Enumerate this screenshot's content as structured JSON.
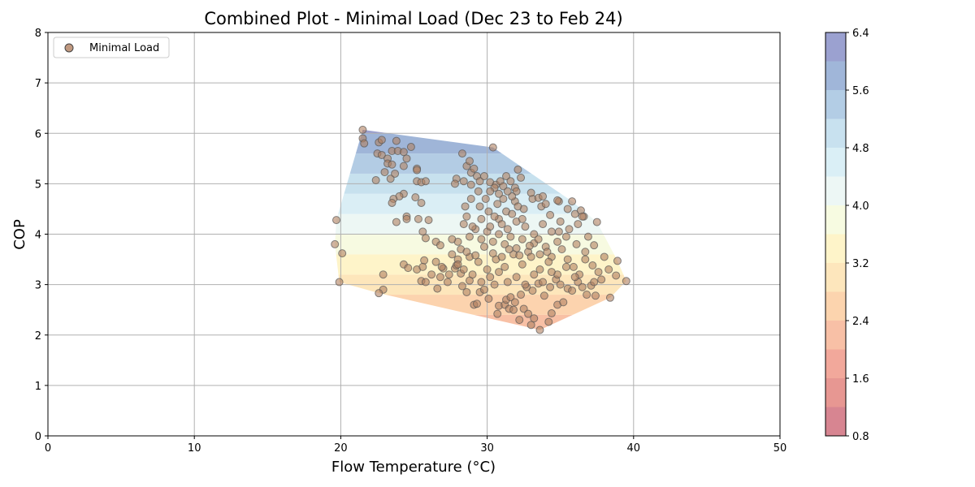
{
  "chart_data": {
    "type": "scatter",
    "title": "Combined Plot - Minimal Load (Dec 23 to Feb 24)",
    "xlabel": "Flow Temperature (°C)",
    "ylabel": "COP",
    "xlim": [
      0,
      50
    ],
    "ylim": [
      0,
      8
    ],
    "xticks": [
      "0",
      "10",
      "20",
      "30",
      "40",
      "50"
    ],
    "yticks": [
      "0",
      "1",
      "2",
      "3",
      "4",
      "5",
      "6",
      "7",
      "8"
    ],
    "grid": true,
    "legend_position": "top-left",
    "series": [
      {
        "name": "Minimal Load",
        "color": "#b08060",
        "points": [
          [
            21.5,
            6.07
          ],
          [
            21.5,
            5.9
          ],
          [
            21.6,
            5.8
          ],
          [
            22.5,
            5.6
          ],
          [
            22.6,
            5.82
          ],
          [
            22.8,
            5.87
          ],
          [
            22.8,
            5.57
          ],
          [
            23.2,
            5.5
          ],
          [
            23.2,
            5.4
          ],
          [
            23.5,
            5.38
          ],
          [
            23.5,
            5.65
          ],
          [
            23.8,
            5.85
          ],
          [
            23.9,
            5.65
          ],
          [
            24.3,
            5.63
          ],
          [
            24.5,
            5.5
          ],
          [
            24.8,
            5.73
          ],
          [
            25.2,
            5.3
          ],
          [
            25.2,
            5.27
          ],
          [
            23.0,
            5.23
          ],
          [
            22.4,
            5.07
          ],
          [
            23.4,
            5.1
          ],
          [
            23.7,
            5.2
          ],
          [
            24.3,
            5.35
          ],
          [
            25.2,
            5.05
          ],
          [
            25.5,
            5.03
          ],
          [
            25.8,
            5.05
          ],
          [
            24.3,
            4.8
          ],
          [
            24.0,
            4.75
          ],
          [
            23.6,
            4.7
          ],
          [
            23.5,
            4.62
          ],
          [
            25.1,
            4.73
          ],
          [
            25.5,
            4.62
          ],
          [
            23.8,
            4.24
          ],
          [
            24.5,
            4.35
          ],
          [
            24.5,
            4.3
          ],
          [
            25.3,
            4.3
          ],
          [
            26.0,
            4.28
          ],
          [
            25.6,
            4.05
          ],
          [
            25.8,
            3.92
          ],
          [
            26.5,
            3.85
          ],
          [
            26.8,
            3.78
          ],
          [
            19.7,
            4.28
          ],
          [
            19.6,
            3.8
          ],
          [
            20.1,
            3.62
          ],
          [
            19.9,
            3.05
          ],
          [
            22.9,
            3.2
          ],
          [
            22.9,
            2.9
          ],
          [
            22.6,
            2.83
          ],
          [
            24.3,
            3.4
          ],
          [
            24.6,
            3.33
          ],
          [
            25.2,
            3.3
          ],
          [
            25.7,
            3.48
          ],
          [
            25.6,
            3.35
          ],
          [
            25.5,
            3.07
          ],
          [
            25.8,
            3.05
          ],
          [
            26.2,
            3.2
          ],
          [
            26.5,
            3.45
          ],
          [
            26.6,
            2.92
          ],
          [
            27.0,
            3.32
          ],
          [
            26.8,
            3.15
          ],
          [
            27.3,
            3.05
          ],
          [
            27.8,
            3.32
          ],
          [
            27.9,
            3.38
          ],
          [
            28.0,
            3.5
          ],
          [
            28.2,
            3.22
          ],
          [
            28.3,
            2.97
          ],
          [
            28.6,
            2.85
          ],
          [
            28.8,
            3.08
          ],
          [
            29.1,
            2.6
          ],
          [
            29.3,
            2.62
          ],
          [
            29.5,
            2.85
          ],
          [
            29.8,
            2.9
          ],
          [
            30.1,
            2.72
          ],
          [
            30.5,
            3.0
          ],
          [
            30.7,
            2.42
          ],
          [
            30.8,
            2.58
          ],
          [
            31.2,
            2.6
          ],
          [
            31.5,
            2.52
          ],
          [
            31.8,
            2.5
          ],
          [
            32.2,
            2.3
          ],
          [
            32.5,
            2.52
          ],
          [
            32.8,
            2.42
          ],
          [
            33.0,
            2.2
          ],
          [
            33.2,
            2.33
          ],
          [
            33.6,
            2.1
          ],
          [
            34.2,
            2.26
          ],
          [
            34.4,
            2.43
          ],
          [
            34.8,
            2.6
          ],
          [
            35.2,
            2.65
          ],
          [
            31.3,
            2.7
          ],
          [
            31.6,
            2.75
          ],
          [
            31.9,
            2.65
          ],
          [
            32.3,
            2.8
          ],
          [
            32.7,
            2.95
          ],
          [
            33.1,
            2.88
          ],
          [
            33.5,
            3.02
          ],
          [
            33.9,
            2.78
          ],
          [
            34.3,
            2.95
          ],
          [
            34.7,
            3.1
          ],
          [
            35.0,
            3.0
          ],
          [
            35.5,
            2.92
          ],
          [
            35.8,
            2.88
          ],
          [
            36.2,
            3.05
          ],
          [
            36.5,
            2.95
          ],
          [
            36.8,
            2.8
          ],
          [
            37.1,
            2.98
          ],
          [
            37.4,
            2.78
          ],
          [
            37.3,
            3.05
          ],
          [
            37.6,
            3.25
          ],
          [
            38.0,
            3.55
          ],
          [
            38.3,
            3.3
          ],
          [
            38.8,
            3.18
          ],
          [
            38.9,
            3.47
          ],
          [
            39.5,
            3.07
          ],
          [
            38.4,
            2.74
          ],
          [
            37.8,
            3.1
          ],
          [
            37.2,
            3.38
          ],
          [
            36.7,
            3.5
          ],
          [
            36.3,
            3.2
          ],
          [
            35.9,
            3.35
          ],
          [
            35.5,
            3.5
          ],
          [
            35.1,
            3.7
          ],
          [
            34.8,
            3.85
          ],
          [
            34.4,
            3.55
          ],
          [
            34.0,
            3.75
          ],
          [
            33.6,
            3.6
          ],
          [
            33.2,
            3.82
          ],
          [
            32.8,
            3.65
          ],
          [
            32.4,
            3.9
          ],
          [
            32.0,
            3.72
          ],
          [
            31.6,
            3.95
          ],
          [
            31.2,
            3.8
          ],
          [
            30.8,
            4.0
          ],
          [
            30.4,
            3.85
          ],
          [
            30.0,
            4.05
          ],
          [
            29.6,
            3.9
          ],
          [
            29.2,
            4.1
          ],
          [
            28.8,
            3.95
          ],
          [
            28.4,
            4.2
          ],
          [
            28.0,
            3.85
          ],
          [
            27.6,
            3.6
          ],
          [
            28.2,
            3.7
          ],
          [
            28.8,
            3.55
          ],
          [
            29.4,
            3.45
          ],
          [
            30.0,
            3.3
          ],
          [
            30.6,
            3.5
          ],
          [
            31.2,
            3.35
          ],
          [
            31.8,
            3.6
          ],
          [
            32.4,
            3.4
          ],
          [
            33.0,
            3.55
          ],
          [
            33.6,
            3.3
          ],
          [
            34.2,
            3.45
          ],
          [
            34.8,
            3.2
          ],
          [
            35.4,
            3.35
          ],
          [
            36.0,
            3.15
          ],
          [
            29.0,
            3.2
          ],
          [
            29.6,
            3.05
          ],
          [
            30.2,
            3.15
          ],
          [
            30.8,
            3.25
          ],
          [
            31.4,
            3.05
          ],
          [
            32.0,
            3.15
          ],
          [
            32.6,
            3.0
          ],
          [
            33.2,
            3.2
          ],
          [
            33.8,
            3.05
          ],
          [
            34.4,
            3.25
          ],
          [
            28.5,
            4.55
          ],
          [
            28.9,
            4.7
          ],
          [
            29.5,
            4.55
          ],
          [
            30.1,
            4.45
          ],
          [
            30.7,
            4.6
          ],
          [
            31.3,
            4.45
          ],
          [
            31.9,
            4.65
          ],
          [
            32.5,
            4.5
          ],
          [
            33.1,
            4.7
          ],
          [
            33.7,
            4.55
          ],
          [
            34.3,
            4.38
          ],
          [
            34.9,
            4.65
          ],
          [
            35.5,
            4.5
          ],
          [
            36.0,
            4.4
          ],
          [
            36.6,
            4.35
          ],
          [
            36.2,
            4.2
          ],
          [
            35.6,
            4.1
          ],
          [
            35.0,
            4.25
          ],
          [
            34.4,
            4.05
          ],
          [
            33.8,
            4.2
          ],
          [
            33.2,
            4.0
          ],
          [
            32.6,
            4.15
          ],
          [
            32.0,
            4.25
          ],
          [
            31.4,
            4.1
          ],
          [
            30.8,
            4.3
          ],
          [
            30.2,
            4.15
          ],
          [
            29.6,
            4.3
          ],
          [
            29.0,
            4.15
          ],
          [
            28.6,
            4.35
          ],
          [
            35.8,
            4.65
          ],
          [
            36.4,
            4.47
          ],
          [
            36.5,
            4.35
          ],
          [
            37.5,
            4.24
          ],
          [
            36.9,
            3.95
          ],
          [
            37.3,
            3.78
          ],
          [
            36.7,
            3.65
          ],
          [
            36.1,
            3.8
          ],
          [
            35.4,
            3.95
          ],
          [
            34.9,
            4.05
          ],
          [
            28.3,
            5.6
          ],
          [
            28.6,
            5.35
          ],
          [
            28.9,
            5.22
          ],
          [
            29.1,
            5.3
          ],
          [
            29.3,
            5.15
          ],
          [
            28.8,
            5.45
          ],
          [
            29.5,
            5.05
          ],
          [
            29.8,
            5.15
          ],
          [
            30.2,
            5.03
          ],
          [
            30.4,
            5.72
          ],
          [
            30.6,
            4.98
          ],
          [
            30.9,
            5.05
          ],
          [
            31.1,
            4.95
          ],
          [
            31.3,
            5.15
          ],
          [
            31.6,
            5.05
          ],
          [
            31.9,
            4.92
          ],
          [
            32.1,
            5.28
          ],
          [
            32.3,
            5.12
          ],
          [
            32.0,
            4.85
          ],
          [
            31.7,
            4.75
          ],
          [
            31.4,
            4.85
          ],
          [
            31.1,
            4.7
          ],
          [
            30.8,
            4.8
          ],
          [
            30.5,
            4.92
          ],
          [
            30.2,
            4.85
          ],
          [
            29.9,
            4.7
          ],
          [
            29.4,
            4.85
          ],
          [
            28.9,
            4.98
          ],
          [
            28.4,
            5.05
          ],
          [
            27.9,
            5.1
          ],
          [
            27.8,
            5.0
          ],
          [
            33.0,
            4.82
          ],
          [
            33.5,
            4.72
          ],
          [
            34.0,
            4.6
          ],
          [
            34.8,
            4.67
          ],
          [
            33.8,
            4.75
          ],
          [
            31.0,
            3.55
          ],
          [
            31.5,
            3.7
          ],
          [
            32.2,
            3.58
          ],
          [
            32.9,
            3.77
          ],
          [
            33.5,
            3.9
          ],
          [
            34.1,
            3.65
          ],
          [
            30.4,
            3.62
          ],
          [
            29.8,
            3.75
          ],
          [
            29.2,
            3.58
          ],
          [
            28.6,
            3.65
          ],
          [
            27.6,
            3.9
          ],
          [
            28.0,
            3.4
          ],
          [
            27.4,
            3.2
          ],
          [
            26.9,
            3.35
          ],
          [
            28.4,
            3.3
          ],
          [
            31.7,
            4.4
          ],
          [
            32.1,
            4.55
          ],
          [
            32.4,
            4.3
          ],
          [
            31.0,
            4.2
          ],
          [
            30.5,
            4.35
          ]
        ]
      }
    ],
    "colorbar": {
      "ticks": [
        "0.8",
        "1.6",
        "2.4",
        "3.2",
        "4.0",
        "4.8",
        "5.6",
        "6.4"
      ],
      "min": 0.8,
      "max": 6.4,
      "levels": 14,
      "colors": [
        "#d0707e",
        "#e3857f",
        "#f0998a",
        "#f7b596",
        "#fccca0",
        "#fde2b0",
        "#fef2c0",
        "#f6fadc",
        "#eaf6f3",
        "#d4ecf4",
        "#bedcec",
        "#a6c4e0",
        "#8fa9d2",
        "#8a90c8"
      ]
    }
  }
}
